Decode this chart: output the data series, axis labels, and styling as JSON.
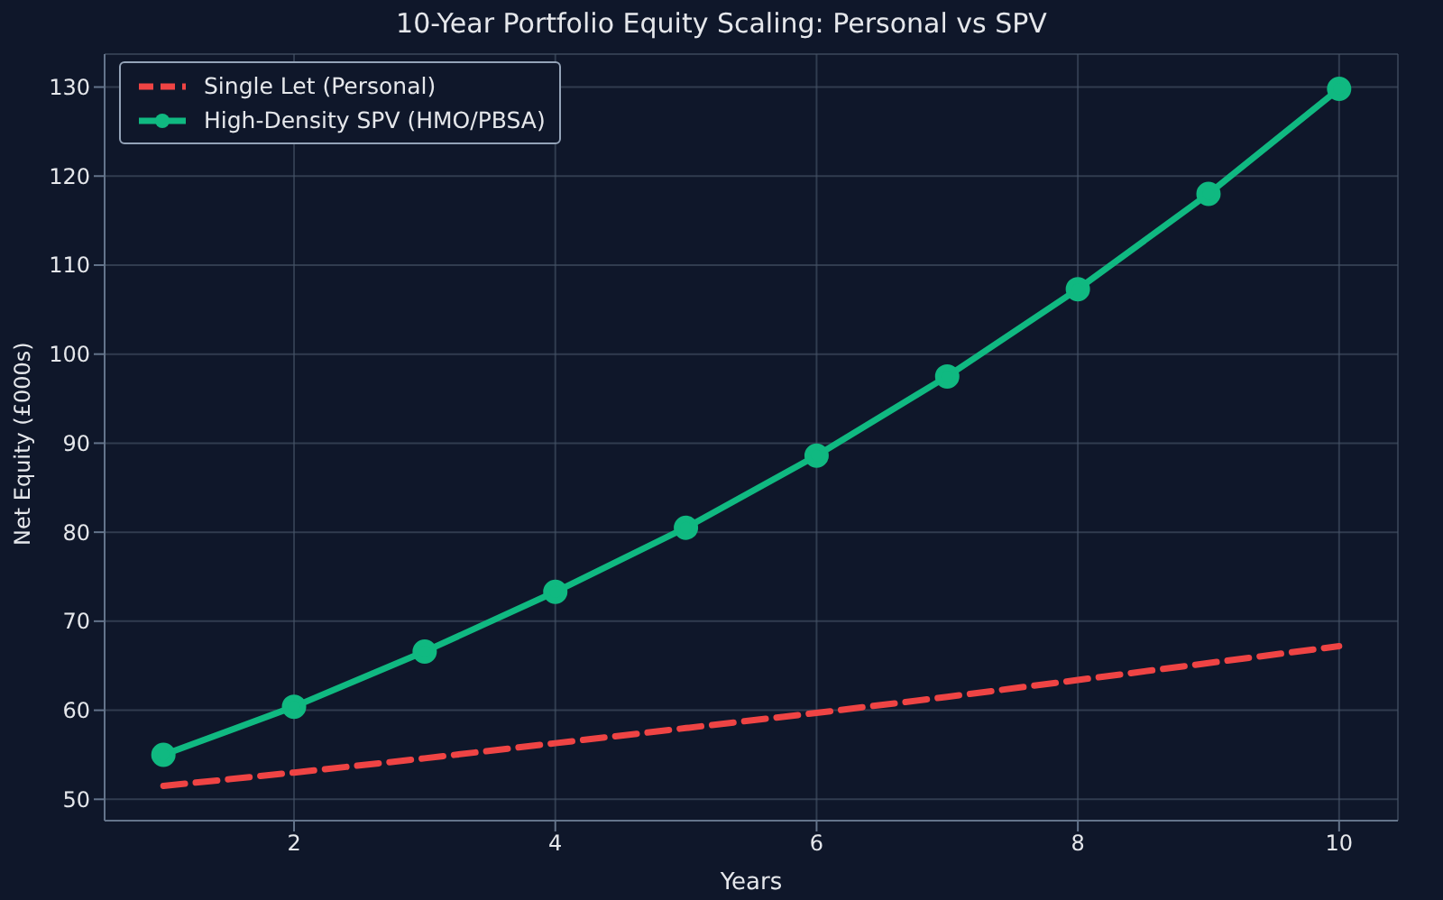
{
  "chart_data": {
    "type": "line",
    "title": "10-Year Portfolio Equity Scaling: Personal vs SPV",
    "xlabel": "Years",
    "ylabel": "Net Equity (£000s)",
    "x": [
      1,
      2,
      3,
      4,
      5,
      6,
      7,
      8,
      9,
      10
    ],
    "series": [
      {
        "name": "Single Let (Personal)",
        "color": "#ef4444",
        "line_style": "dashed",
        "marker": "none",
        "values": [
          51.5,
          53.0,
          54.6,
          56.3,
          58.0,
          59.7,
          61.5,
          63.4,
          65.3,
          67.2
        ]
      },
      {
        "name": "High-Density SPV (HMO/PBSA)",
        "color": "#10b981",
        "line_style": "solid",
        "marker": "circle",
        "values": [
          55.0,
          60.4,
          66.6,
          73.3,
          80.5,
          88.6,
          97.5,
          107.3,
          118.0,
          129.8
        ]
      }
    ],
    "xlim": [
      0.55,
      10.45
    ],
    "xticks": [
      2,
      4,
      6,
      8,
      10
    ],
    "ylim": [
      47.6,
      133.7
    ],
    "yticks": [
      50,
      60,
      70,
      80,
      90,
      100,
      110,
      120,
      130
    ],
    "grid": true,
    "legend": "top left"
  }
}
